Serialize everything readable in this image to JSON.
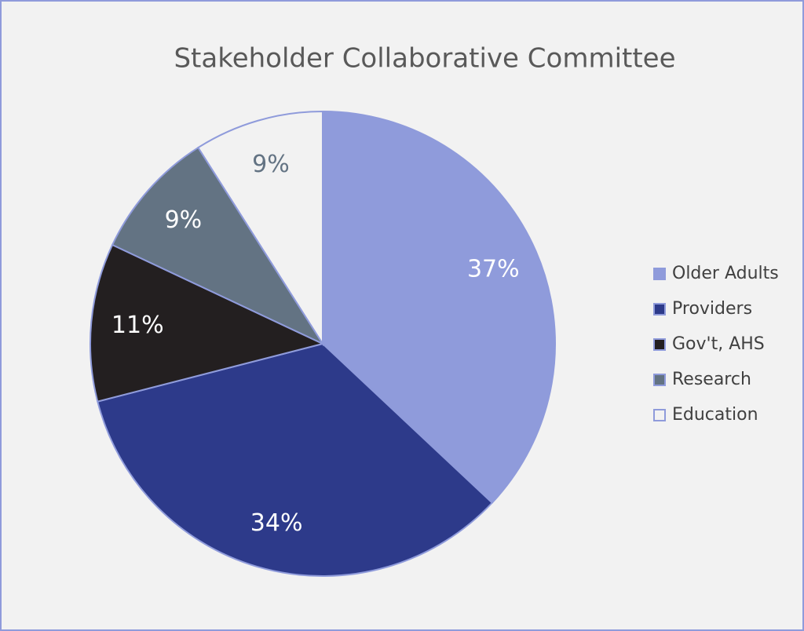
{
  "chart_data": {
    "type": "pie",
    "title": "Stakeholder Collaborative Committee",
    "categories": [
      "Older Adults",
      "Providers",
      "Gov't, AHS",
      "Research",
      "Education"
    ],
    "values": [
      37,
      34,
      11,
      9,
      9
    ],
    "value_labels": [
      "37%",
      "34%",
      "11%",
      "9%",
      "9%"
    ],
    "colors": [
      "#8f9bdb",
      "#2d3a8a",
      "#231f20",
      "#637383",
      "#f2f2f2"
    ],
    "legend": "right"
  }
}
